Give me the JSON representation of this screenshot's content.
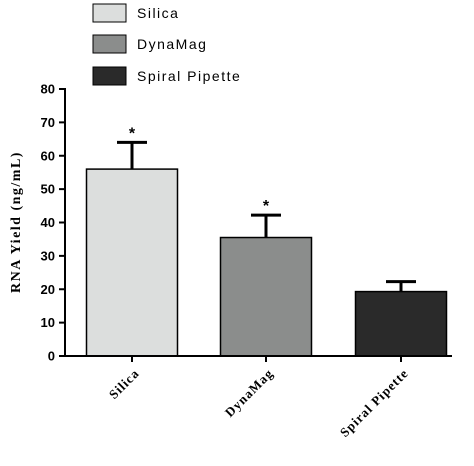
{
  "chart_data": {
    "type": "bar",
    "categories": [
      "Silica",
      "DynaMag",
      "Spiral Pipette"
    ],
    "values": [
      56,
      35.5,
      19.3
    ],
    "errors": [
      8,
      6.7,
      3
    ],
    "significance": [
      "*",
      "*",
      ""
    ],
    "colors": [
      "#dcdedd",
      "#8b8d8c",
      "#2a2a2a"
    ],
    "legend": {
      "placement": "top",
      "entries": [
        "Silica",
        "DynaMag",
        "Spiral Pipette"
      ]
    },
    "ylabel": "RNA Yield (ng/mL)",
    "xlabel": "",
    "ylim": [
      0,
      80
    ],
    "yticks": [
      0,
      10,
      20,
      30,
      40,
      50,
      60,
      70,
      80
    ],
    "grid": false
  }
}
